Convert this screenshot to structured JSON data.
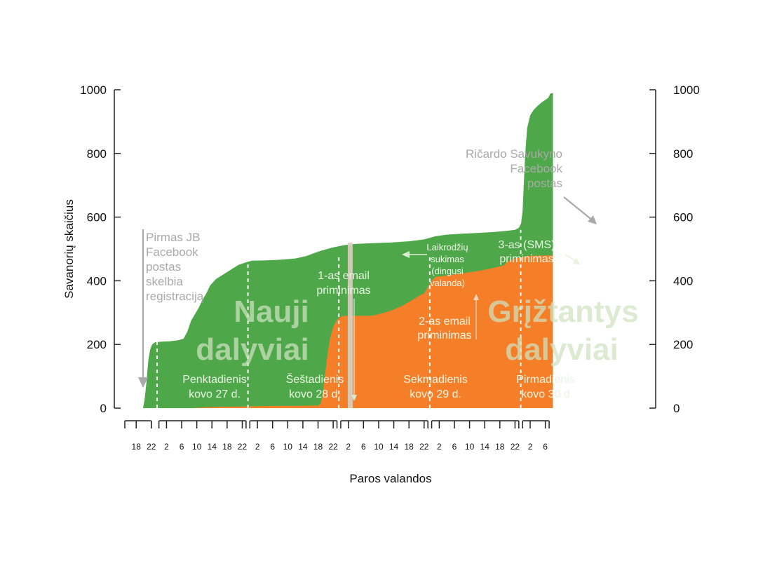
{
  "chart_data": {
    "type": "area",
    "ylabel": "Savanorių skaičius",
    "xlabel": "Paros valandos",
    "ylim": [
      0,
      1000
    ],
    "xlim": [
      15,
      150.5
    ],
    "yticks": [
      "0",
      "200",
      "400",
      "600",
      "800",
      "1000"
    ],
    "x_hour_labels": [
      {
        "x": 18,
        "label": "18"
      },
      {
        "x": 22,
        "label": "22"
      },
      {
        "x": 26,
        "label": "2"
      },
      {
        "x": 30,
        "label": "6"
      },
      {
        "x": 34,
        "label": "10"
      },
      {
        "x": 38,
        "label": "14"
      },
      {
        "x": 42,
        "label": "18"
      },
      {
        "x": 46,
        "label": "22"
      },
      {
        "x": 50,
        "label": "2"
      },
      {
        "x": 54,
        "label": "6"
      },
      {
        "x": 58,
        "label": "10"
      },
      {
        "x": 62,
        "label": "14"
      },
      {
        "x": 66,
        "label": "18"
      },
      {
        "x": 70,
        "label": "22"
      },
      {
        "x": 74,
        "label": "2"
      },
      {
        "x": 78,
        "label": "6"
      },
      {
        "x": 82,
        "label": "10"
      },
      {
        "x": 86,
        "label": "14"
      },
      {
        "x": 90,
        "label": "18"
      },
      {
        "x": 94,
        "label": "22"
      },
      {
        "x": 98,
        "label": "2"
      },
      {
        "x": 102,
        "label": "6"
      },
      {
        "x": 106,
        "label": "10"
      },
      {
        "x": 110,
        "label": "14"
      },
      {
        "x": 114,
        "label": "18"
      },
      {
        "x": 118,
        "label": "22"
      },
      {
        "x": 122,
        "label": "2"
      },
      {
        "x": 126,
        "label": "6"
      }
    ],
    "day_groups": [
      [
        15,
        22
      ],
      [
        24,
        47
      ],
      [
        48,
        71
      ],
      [
        72,
        95
      ],
      [
        96,
        119
      ],
      [
        120,
        127
      ]
    ],
    "day_boundaries": [
      23.5,
      47.5,
      71.5,
      95.5,
      119.5
    ],
    "clock_change_x": 74.5,
    "series": [
      {
        "name": "Nauji dalyviai",
        "color": "#4ea749",
        "values_total": [
          [
            19.8,
            0
          ],
          [
            20.2,
            25
          ],
          [
            20.7,
            80
          ],
          [
            21.2,
            150
          ],
          [
            21.7,
            185
          ],
          [
            22.2,
            200
          ],
          [
            23,
            207
          ],
          [
            25,
            209
          ],
          [
            27,
            210
          ],
          [
            29,
            213
          ],
          [
            30.5,
            218
          ],
          [
            31.5,
            240
          ],
          [
            32.5,
            275
          ],
          [
            33.5,
            295
          ],
          [
            34.5,
            315
          ],
          [
            35.5,
            340
          ],
          [
            36.5,
            360
          ],
          [
            37.5,
            385
          ],
          [
            39,
            405
          ],
          [
            41,
            420
          ],
          [
            43,
            435
          ],
          [
            45,
            450
          ],
          [
            47,
            458
          ],
          [
            48.5,
            463
          ],
          [
            52,
            464
          ],
          [
            56,
            466
          ],
          [
            60,
            470
          ],
          [
            63,
            478
          ],
          [
            65,
            487
          ],
          [
            67,
            495
          ],
          [
            70,
            505
          ],
          [
            73,
            512
          ],
          [
            76,
            516
          ],
          [
            80,
            518
          ],
          [
            85,
            520
          ],
          [
            90,
            524
          ],
          [
            94,
            530
          ],
          [
            97,
            540
          ],
          [
            100,
            545
          ],
          [
            104,
            548
          ],
          [
            108,
            550
          ],
          [
            112,
            553
          ],
          [
            116,
            557
          ],
          [
            118,
            560
          ],
          [
            119,
            566
          ],
          [
            119.6,
            580
          ],
          [
            120,
            620
          ],
          [
            120.3,
            700
          ],
          [
            120.7,
            800
          ],
          [
            121.2,
            880
          ],
          [
            122,
            920
          ],
          [
            123,
            938
          ],
          [
            124,
            950
          ],
          [
            125,
            960
          ],
          [
            126,
            968
          ],
          [
            126.8,
            975
          ],
          [
            127.3,
            988
          ],
          [
            128,
            990
          ]
        ]
      },
      {
        "name": "Grįžtantys dalyviai",
        "color": "#f57f28",
        "values": [
          [
            33,
            0
          ],
          [
            35,
            2
          ],
          [
            40,
            4
          ],
          [
            45,
            5
          ],
          [
            50,
            6
          ],
          [
            55,
            7
          ],
          [
            60,
            7
          ],
          [
            65,
            8
          ],
          [
            66,
            8
          ],
          [
            66.6,
            12
          ],
          [
            67.2,
            40
          ],
          [
            67.8,
            100
          ],
          [
            68.5,
            170
          ],
          [
            69.2,
            220
          ],
          [
            70,
            255
          ],
          [
            71,
            278
          ],
          [
            72,
            287
          ],
          [
            73,
            290
          ],
          [
            75,
            290
          ],
          [
            80,
            290
          ],
          [
            82,
            295
          ],
          [
            85,
            305
          ],
          [
            88,
            320
          ],
          [
            91,
            340
          ],
          [
            93,
            355
          ],
          [
            94,
            360
          ],
          [
            95,
            380
          ],
          [
            96,
            400
          ],
          [
            97,
            412
          ],
          [
            99,
            415
          ],
          [
            102,
            420
          ],
          [
            105,
            425
          ],
          [
            108,
            430
          ],
          [
            111,
            437
          ],
          [
            114,
            445
          ],
          [
            115,
            448
          ],
          [
            115.8,
            458
          ],
          [
            116.8,
            465
          ],
          [
            118,
            470
          ],
          [
            119,
            472
          ],
          [
            120,
            475
          ],
          [
            121,
            478
          ],
          [
            124,
            479
          ],
          [
            128,
            480
          ]
        ]
      }
    ],
    "big_labels": {
      "new": [
        "Nauji",
        "dalyviai"
      ],
      "returning": [
        "Grįžtantys",
        "dalyviai"
      ]
    },
    "days": [
      [
        "Penktadienis",
        "kovo 27 d."
      ],
      [
        "Šeštadienis",
        "kovo 28 d."
      ],
      [
        "Sekmadienis",
        "kovo 29 d."
      ],
      [
        "Pirmadienis",
        "kovo 30 d"
      ]
    ],
    "annotations": {
      "jb_post": [
        "Pirmas JB",
        "Facebook",
        "postas",
        "skelbia",
        "registraciją"
      ],
      "email1": [
        "1-as email",
        "priminimas"
      ],
      "clock": [
        "Laikrodžių",
        "sukimas",
        "(dingusi",
        "valanda)"
      ],
      "email2": [
        "2-as email",
        "priminimas"
      ],
      "sms": [
        "3-as (SMS)",
        "priminimas"
      ],
      "ricardo": [
        "Ričardo Savukyno",
        "Facebook",
        "postas"
      ]
    }
  }
}
